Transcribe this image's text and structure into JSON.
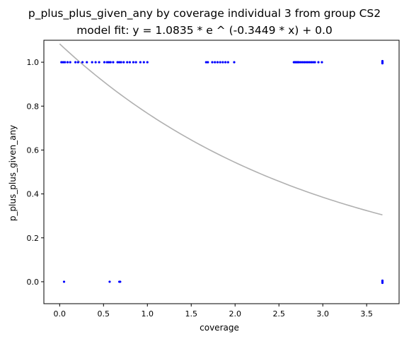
{
  "chart_data": {
    "type": "scatter",
    "title": "p_plus_plus_given_any by coverage individual 3 from group CS2",
    "subtitle": "model fit: y = 1.0835 * e ^ (-0.3449 * x) + 0.0",
    "xlabel": "coverage",
    "ylabel": "p_plus_plus_given_any",
    "xlim": [
      -0.18,
      3.87
    ],
    "ylim": [
      -0.1,
      1.1
    ],
    "x_ticks": [
      "0.0",
      "0.5",
      "1.0",
      "1.5",
      "2.0",
      "2.5",
      "3.0",
      "3.5"
    ],
    "y_ticks": [
      "0.0",
      "0.2",
      "0.4",
      "0.6",
      "0.8",
      "1.0"
    ],
    "grid": false,
    "series": [
      {
        "kind": "points",
        "color": "#0000ff",
        "points": [
          [
            0.02,
            1.0
          ],
          [
            0.04,
            1.0
          ],
          [
            0.06,
            1.0
          ],
          [
            0.09,
            1.0
          ],
          [
            0.12,
            1.0
          ],
          [
            0.18,
            1.0
          ],
          [
            0.21,
            1.0
          ],
          [
            0.26,
            1.0
          ],
          [
            0.31,
            1.0
          ],
          [
            0.37,
            1.0
          ],
          [
            0.41,
            1.0
          ],
          [
            0.45,
            1.0
          ],
          [
            0.51,
            1.0
          ],
          [
            0.54,
            1.0
          ],
          [
            0.56,
            1.0
          ],
          [
            0.58,
            1.0
          ],
          [
            0.61,
            1.0
          ],
          [
            0.66,
            1.0
          ],
          [
            0.68,
            1.0
          ],
          [
            0.7,
            1.0
          ],
          [
            0.73,
            1.0
          ],
          [
            0.77,
            1.0
          ],
          [
            0.8,
            1.0
          ],
          [
            0.84,
            1.0
          ],
          [
            0.87,
            1.0
          ],
          [
            0.92,
            1.0
          ],
          [
            0.96,
            1.0
          ],
          [
            1.0,
            1.0
          ],
          [
            1.67,
            1.0
          ],
          [
            1.69,
            1.0
          ],
          [
            1.74,
            1.0
          ],
          [
            1.77,
            1.0
          ],
          [
            1.8,
            1.0
          ],
          [
            1.83,
            1.0
          ],
          [
            1.86,
            1.0
          ],
          [
            1.89,
            1.0
          ],
          [
            1.92,
            1.0
          ],
          [
            1.99,
            1.0
          ],
          [
            2.67,
            1.0
          ],
          [
            2.68,
            1.0
          ],
          [
            2.69,
            1.0
          ],
          [
            2.7,
            1.0
          ],
          [
            2.71,
            1.0
          ],
          [
            2.72,
            1.0
          ],
          [
            2.73,
            1.0
          ],
          [
            2.75,
            1.0
          ],
          [
            2.77,
            1.0
          ],
          [
            2.79,
            1.0
          ],
          [
            2.81,
            1.0
          ],
          [
            2.83,
            1.0
          ],
          [
            2.85,
            1.0
          ],
          [
            2.87,
            1.0
          ],
          [
            2.89,
            1.0
          ],
          [
            2.91,
            1.0
          ],
          [
            2.95,
            1.0
          ],
          [
            2.99,
            1.0
          ],
          [
            3.68,
            1.0
          ],
          [
            3.68,
            0.995
          ],
          [
            3.68,
            1.005
          ],
          [
            0.05,
            0.0
          ],
          [
            0.57,
            0.0
          ],
          [
            0.68,
            0.0
          ],
          [
            0.69,
            0.0
          ],
          [
            3.68,
            0.0
          ],
          [
            3.68,
            0.005
          ],
          [
            3.68,
            -0.005
          ]
        ]
      },
      {
        "kind": "fit",
        "color": "#b0b0b0",
        "model": {
          "a": 1.0835,
          "b": -0.3449,
          "c": 0.0
        },
        "x_range": [
          0.0,
          3.68
        ]
      }
    ]
  }
}
